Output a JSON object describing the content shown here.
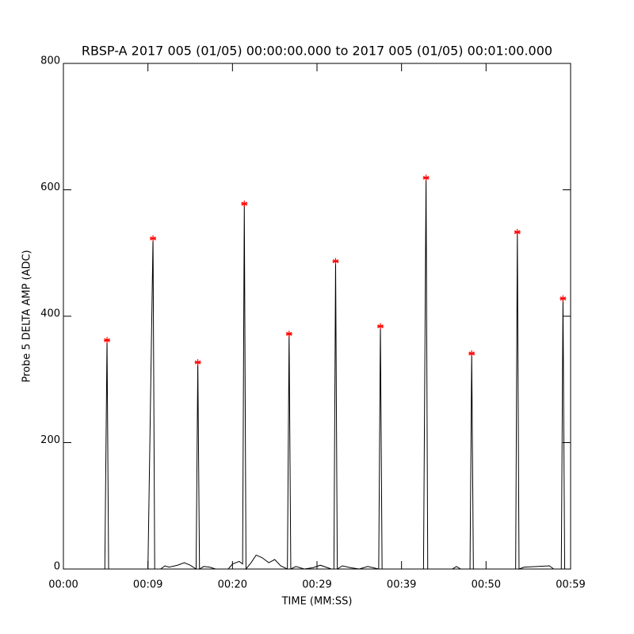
{
  "chart_data": {
    "type": "line",
    "title": "RBSP-A 2017 005 (01/05) 00:00:00.000 to 2017 005 (01/05) 00:01:00.000",
    "x_label": "TIME (MM:SS)",
    "y_label": "Probe 5 DELTA AMP (ADC)",
    "xlim": [
      0,
      60
    ],
    "ylim": [
      0,
      800
    ],
    "xticks": [
      {
        "value": 0,
        "label": "00:00"
      },
      {
        "value": 10,
        "label": "00:09"
      },
      {
        "value": 20,
        "label": "00:20"
      },
      {
        "value": 30,
        "label": "00:29"
      },
      {
        "value": 40,
        "label": "00:39"
      },
      {
        "value": 50,
        "label": "00:50"
      },
      {
        "value": 60,
        "label": "00:59"
      }
    ],
    "yticks": [
      0,
      200,
      400,
      600,
      800
    ],
    "series": [
      {
        "color": "#000000",
        "marker": "none",
        "x": [
          0,
          4.9,
          5.16,
          5.35,
          10.0,
          10.6,
          10.8,
          11.5,
          12.0,
          12.5,
          13.5,
          14.3,
          15.0,
          15.7,
          15.9,
          16.1,
          16.6,
          17.3,
          18.0,
          19.5,
          20.0,
          20.8,
          21.2,
          21.4,
          21.6,
          22.2,
          22.8,
          23.5,
          24.3,
          25.0,
          25.7,
          26.5,
          26.7,
          26.9,
          27.5,
          28.5,
          29.5,
          30.4,
          31.7,
          32.0,
          32.2,
          32.4,
          33.0,
          34.0,
          35.0,
          36.0,
          37.3,
          37.5,
          37.7,
          38.0,
          42.6,
          42.9,
          43.1,
          46.0,
          46.5,
          47.0,
          48.1,
          48.3,
          48.5,
          51.0,
          53.5,
          53.7,
          53.9,
          54.5,
          57.5,
          58.0,
          58.9,
          59.1,
          59.3,
          60
        ],
        "values": [
          0,
          0,
          362,
          0,
          0,
          523,
          0,
          0,
          5,
          3,
          6,
          10,
          6,
          0,
          327,
          0,
          4,
          3,
          0,
          0,
          8,
          12,
          8,
          578,
          0,
          10,
          22,
          18,
          10,
          15,
          5,
          0,
          372,
          0,
          4,
          0,
          2,
          6,
          0,
          0,
          487,
          0,
          5,
          2,
          0,
          4,
          0,
          384,
          0,
          0,
          0,
          619,
          0,
          0,
          4,
          0,
          0,
          341,
          0,
          0,
          0,
          533,
          0,
          3,
          5,
          0,
          0,
          428,
          0,
          0
        ]
      },
      {
        "color": "#ff0000",
        "marker": "star",
        "line": false,
        "x": [
          5.16,
          10.6,
          15.9,
          21.4,
          26.7,
          32.2,
          37.5,
          42.9,
          48.3,
          53.7,
          59.1
        ],
        "values": [
          362,
          523,
          327,
          578,
          372,
          487,
          384,
          619,
          341,
          533,
          428
        ]
      }
    ]
  }
}
